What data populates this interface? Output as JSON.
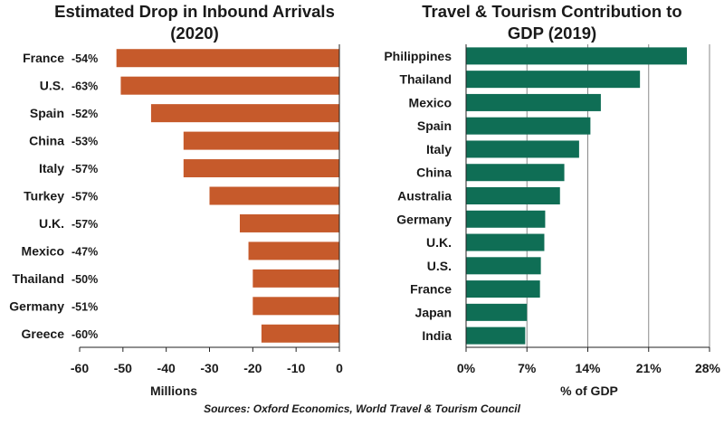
{
  "colors": {
    "left_bar": "#C65A2B",
    "right_bar": "#0F6E55",
    "grid": "#8a8a8a",
    "axis": "#222222"
  },
  "source": "Sources: Oxford Economics, World Travel & Tourism Council",
  "chart_data": [
    {
      "type": "bar",
      "orientation": "horizontal",
      "title_lines": [
        "Estimated Drop in Inbound Arrivals",
        "(2020)"
      ],
      "xlabel": "Millions",
      "xlim": [
        -60,
        0
      ],
      "xticks": [
        -60,
        -50,
        -40,
        -30,
        -20,
        -10,
        0
      ],
      "xtick_labels": [
        "-60",
        "-50",
        "-40",
        "-30",
        "-20",
        "-10",
        "0"
      ],
      "grid": false,
      "categories": [
        "France",
        "U.S.",
        "Spain",
        "China",
        "Italy",
        "Turkey",
        "U.K.",
        "Mexico",
        "Thailand",
        "Germany",
        "Greece"
      ],
      "values": [
        -51.5,
        -50.5,
        -43.5,
        -36,
        -36,
        -30,
        -23,
        -21,
        -20,
        -20,
        -18
      ],
      "data_labels": [
        "-54%",
        "-63%",
        "-52%",
        "-53%",
        "-57%",
        "-57%",
        "-57%",
        "-47%",
        "-50%",
        "-51%",
        "-60%"
      ]
    },
    {
      "type": "bar",
      "orientation": "horizontal",
      "title_lines": [
        "Travel & Tourism Contribution to",
        "GDP (2019)"
      ],
      "xlabel": "% of GDP",
      "xlim": [
        0,
        28
      ],
      "xticks": [
        0,
        7,
        14,
        21,
        28
      ],
      "xtick_labels": [
        "0%",
        "7%",
        "14%",
        "21%",
        "28%"
      ],
      "grid": true,
      "categories": [
        "Philippines",
        "Thailand",
        "Mexico",
        "Spain",
        "Italy",
        "China",
        "Australia",
        "Germany",
        "U.K.",
        "U.S.",
        "France",
        "Japan",
        "India"
      ],
      "values": [
        25.4,
        20.0,
        15.5,
        14.3,
        13.0,
        11.3,
        10.8,
        9.1,
        9.0,
        8.6,
        8.5,
        7.0,
        6.8
      ]
    }
  ]
}
